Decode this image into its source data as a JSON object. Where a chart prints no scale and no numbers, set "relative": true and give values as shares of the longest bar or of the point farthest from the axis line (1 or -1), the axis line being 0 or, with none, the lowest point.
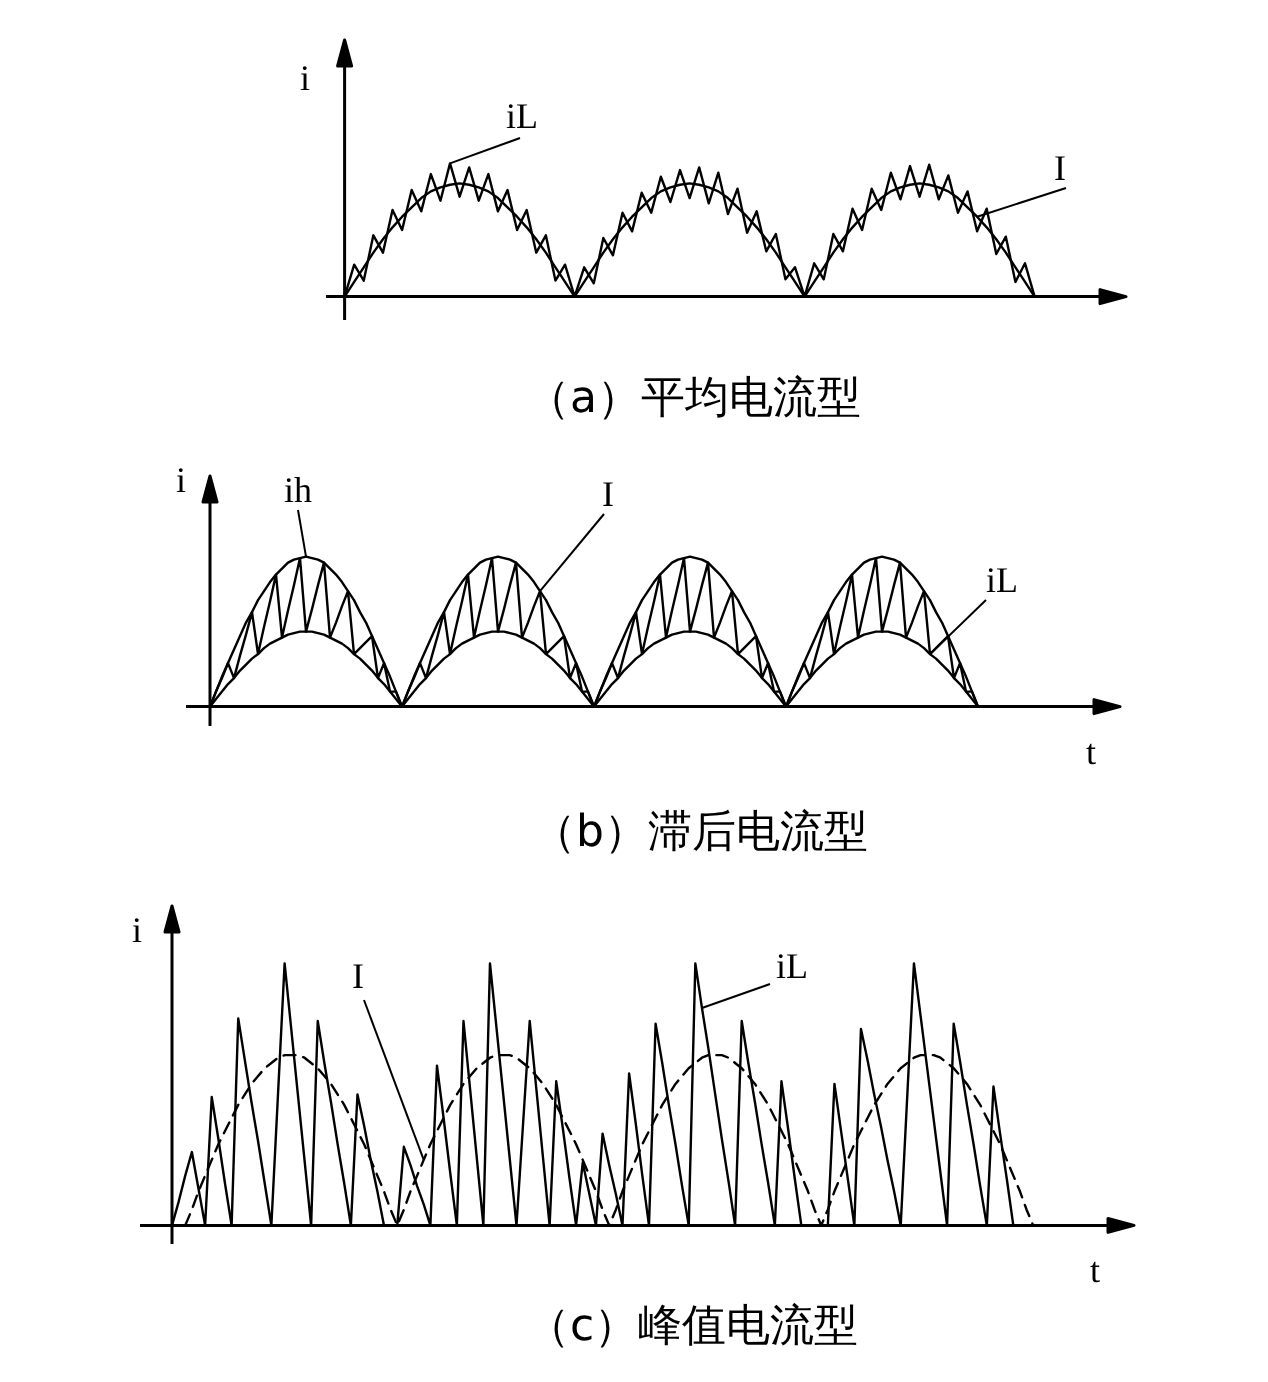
{
  "chart_data": [
    {
      "type": "line",
      "title": "（a）平均电流型",
      "ylabel": "i",
      "relative": true,
      "categories": [
        null,
        null,
        null,
        null,
        null,
        null,
        null,
        null,
        null,
        null,
        null,
        null,
        null,
        null,
        null,
        null,
        null,
        null,
        null,
        null,
        null,
        null,
        null,
        null,
        null,
        null,
        null,
        null,
        null,
        null,
        null,
        null,
        null,
        null,
        null,
        null,
        null,
        null,
        null,
        null,
        null,
        null,
        null,
        null,
        null,
        null,
        null,
        null,
        null,
        null,
        null,
        null,
        null,
        null,
        null,
        null,
        null,
        null,
        null,
        null,
        null,
        null,
        null,
        null,
        null,
        null,
        null,
        null,
        null,
        null,
        null,
        null,
        null
      ],
      "series": [
        {
          "name": "iL",
          "color": "#000000",
          "values": [
            0,
            0.24,
            0.12,
            0.46,
            0.33,
            0.65,
            0.5,
            0.8,
            0.64,
            0.92,
            0.72,
            1,
            0.75,
            0.97,
            0.72,
            0.92,
            0.64,
            0.8,
            0.5,
            0.65,
            0.33,
            0.46,
            0.12,
            0.24,
            0,
            0.22,
            0.1,
            0.44,
            0.31,
            0.63,
            0.49,
            0.78,
            0.63,
            0.9,
            0.71,
            0.95,
            0.74,
            0.97,
            0.7,
            0.93,
            0.62,
            0.81,
            0.48,
            0.64,
            0.34,
            0.47,
            0.13,
            0.22,
            0,
            0.25,
            0.13,
            0.47,
            0.34,
            0.66,
            0.5,
            0.81,
            0.65,
            0.93,
            0.73,
            0.98,
            0.75,
            0.99,
            0.73,
            0.91,
            0.63,
            0.79,
            0.49,
            0.66,
            0.32,
            0.45,
            0.11,
            0.25,
            0
          ]
        },
        {
          "name": "I",
          "color": "#000000",
          "values": [
            0,
            0.11,
            0.22,
            0.33,
            0.43,
            0.52,
            0.6,
            0.67,
            0.74,
            0.79,
            0.82,
            0.84,
            0.85,
            0.84,
            0.82,
            0.79,
            0.74,
            0.67,
            0.6,
            0.52,
            0.43,
            0.33,
            0.22,
            0.11,
            0,
            0.11,
            0.22,
            0.33,
            0.43,
            0.52,
            0.6,
            0.67,
            0.74,
            0.79,
            0.82,
            0.84,
            0.85,
            0.84,
            0.82,
            0.79,
            0.74,
            0.67,
            0.6,
            0.52,
            0.43,
            0.33,
            0.22,
            0.11,
            0,
            0.11,
            0.22,
            0.33,
            0.43,
            0.52,
            0.6,
            0.67,
            0.74,
            0.79,
            0.82,
            0.84,
            0.85,
            0.84,
            0.82,
            0.79,
            0.74,
            0.67,
            0.6,
            0.52,
            0.43,
            0.33,
            0.22,
            0.11,
            0
          ]
        }
      ]
    },
    {
      "type": "line",
      "title": "（b）滞后电流型",
      "xlabel": "t",
      "ylabel": "i",
      "relative": true,
      "categories": [
        null,
        null,
        null,
        null,
        null,
        null,
        null,
        null,
        null,
        null,
        null,
        null,
        null,
        null,
        null,
        null,
        null,
        null,
        null,
        null,
        null,
        null,
        null,
        null,
        null,
        null,
        null,
        null,
        null,
        null,
        null,
        null,
        null,
        null,
        null,
        null,
        null,
        null,
        null,
        null,
        null,
        null,
        null,
        null,
        null,
        null,
        null,
        null,
        null,
        null,
        null,
        null,
        null,
        null,
        null,
        null,
        null,
        null,
        null,
        null,
        null,
        null,
        null,
        null,
        null,
        null,
        null,
        null,
        null,
        null,
        null,
        null,
        null,
        null,
        null,
        null,
        null,
        null,
        null,
        null,
        null,
        null,
        null,
        null,
        null,
        null,
        null,
        null,
        null,
        null,
        null,
        null,
        null,
        null,
        null,
        null,
        null,
        null,
        null,
        null,
        null,
        null,
        null,
        null,
        null,
        null,
        null,
        null,
        null,
        null,
        null,
        null,
        null,
        null,
        null,
        null,
        null,
        null,
        null,
        null,
        null,
        null,
        null,
        null,
        null,
        null,
        null,
        null,
        null
      ],
      "series": [
        {
          "name": "ih",
          "color": "#000000",
          "values": [
            0,
            0.1,
            0.2,
            0.29,
            0.38,
            0.47,
            0.56,
            0.63,
            0.71,
            0.77,
            0.83,
            0.88,
            0.92,
            0.96,
            0.98,
            0.99,
            1,
            0.99,
            0.98,
            0.96,
            0.92,
            0.88,
            0.83,
            0.77,
            0.71,
            0.63,
            0.56,
            0.47,
            0.38,
            0.29,
            0.2,
            0.1,
            0,
            0.1,
            0.2,
            0.29,
            0.38,
            0.47,
            0.56,
            0.63,
            0.71,
            0.77,
            0.83,
            0.88,
            0.92,
            0.96,
            0.98,
            0.99,
            1,
            0.99,
            0.98,
            0.96,
            0.92,
            0.88,
            0.83,
            0.77,
            0.71,
            0.63,
            0.56,
            0.47,
            0.38,
            0.29,
            0.2,
            0.1,
            0,
            0.1,
            0.2,
            0.29,
            0.38,
            0.47,
            0.56,
            0.63,
            0.71,
            0.77,
            0.83,
            0.88,
            0.92,
            0.96,
            0.98,
            0.99,
            1,
            0.99,
            0.98,
            0.96,
            0.92,
            0.88,
            0.83,
            0.77,
            0.71,
            0.63,
            0.56,
            0.47,
            0.38,
            0.29,
            0.2,
            0.1,
            0,
            0.1,
            0.2,
            0.29,
            0.38,
            0.47,
            0.56,
            0.63,
            0.71,
            0.77,
            0.83,
            0.88,
            0.92,
            0.96,
            0.98,
            0.99,
            1,
            0.99,
            0.98,
            0.96,
            0.92,
            0.88,
            0.83,
            0.77,
            0.71,
            0.63,
            0.56,
            0.47,
            0.38,
            0.29,
            0.2,
            0.1,
            0
          ]
        },
        {
          "name": "I",
          "color": "#000000",
          "values": [
            0,
            0.1,
            0.19,
            0.29,
            0.19,
            0.34,
            0.48,
            0.63,
            0.35,
            0.53,
            0.7,
            0.88,
            0.46,
            0.64,
            0.81,
            0.99,
            0.5,
            0.65,
            0.81,
            0.96,
            0.46,
            0.56,
            0.67,
            0.77,
            0.35,
            0.39,
            0.43,
            0.47,
            0.19,
            0.29,
            0.1,
            0.1,
            0,
            0.1,
            0.19,
            0.29,
            0.19,
            0.34,
            0.48,
            0.63,
            0.35,
            0.53,
            0.7,
            0.88,
            0.46,
            0.64,
            0.81,
            0.99,
            0.5,
            0.65,
            0.81,
            0.96,
            0.46,
            0.56,
            0.67,
            0.77,
            0.35,
            0.39,
            0.43,
            0.47,
            0.19,
            0.29,
            0.1,
            0.1,
            0,
            0.1,
            0.19,
            0.29,
            0.19,
            0.34,
            0.48,
            0.63,
            0.35,
            0.53,
            0.7,
            0.88,
            0.46,
            0.64,
            0.81,
            0.99,
            0.5,
            0.65,
            0.81,
            0.96,
            0.46,
            0.56,
            0.67,
            0.77,
            0.35,
            0.39,
            0.43,
            0.47,
            0.19,
            0.29,
            0.1,
            0.1,
            0,
            0.1,
            0.19,
            0.29,
            0.19,
            0.34,
            0.48,
            0.63,
            0.35,
            0.53,
            0.7,
            0.88,
            0.46,
            0.64,
            0.81,
            0.99,
            0.5,
            0.65,
            0.81,
            0.96,
            0.46,
            0.56,
            0.67,
            0.77,
            0.35,
            0.39,
            0.43,
            0.47,
            0.19,
            0.29,
            0.1,
            0.1,
            0
          ]
        },
        {
          "name": "iL",
          "color": "#000000",
          "values": [
            0,
            0.05,
            0.1,
            0.15,
            0.19,
            0.24,
            0.28,
            0.32,
            0.35,
            0.39,
            0.42,
            0.44,
            0.46,
            0.48,
            0.49,
            0.5,
            0.5,
            0.5,
            0.49,
            0.48,
            0.46,
            0.44,
            0.42,
            0.39,
            0.35,
            0.32,
            0.28,
            0.24,
            0.19,
            0.15,
            0.1,
            0.05,
            0,
            0.05,
            0.1,
            0.15,
            0.19,
            0.24,
            0.28,
            0.32,
            0.35,
            0.39,
            0.42,
            0.44,
            0.46,
            0.48,
            0.49,
            0.5,
            0.5,
            0.5,
            0.49,
            0.48,
            0.46,
            0.44,
            0.42,
            0.39,
            0.35,
            0.32,
            0.28,
            0.24,
            0.19,
            0.15,
            0.1,
            0.05,
            0,
            0.05,
            0.1,
            0.15,
            0.19,
            0.24,
            0.28,
            0.32,
            0.35,
            0.39,
            0.42,
            0.44,
            0.46,
            0.48,
            0.49,
            0.5,
            0.5,
            0.5,
            0.49,
            0.48,
            0.46,
            0.44,
            0.42,
            0.39,
            0.35,
            0.32,
            0.28,
            0.24,
            0.19,
            0.15,
            0.1,
            0.05,
            0,
            0.05,
            0.1,
            0.15,
            0.19,
            0.24,
            0.28,
            0.32,
            0.35,
            0.39,
            0.42,
            0.44,
            0.46,
            0.48,
            0.49,
            0.5,
            0.5,
            0.5,
            0.49,
            0.48,
            0.46,
            0.44,
            0.42,
            0.39,
            0.35,
            0.32,
            0.28,
            0.24,
            0.19,
            0.15,
            0.1,
            0.05,
            0
          ]
        }
      ]
    },
    {
      "type": "line",
      "title": "（c）峰值电流型",
      "xlabel": "t",
      "ylabel": "i",
      "relative": true,
      "categories": [
        null,
        null,
        null,
        null,
        null,
        null,
        null,
        null,
        null,
        null,
        null,
        null,
        null,
        null,
        null,
        null,
        null,
        null,
        null,
        null,
        null,
        null,
        null,
        null,
        null,
        null,
        null,
        null,
        null,
        null,
        null,
        null,
        null,
        null,
        null,
        null,
        null,
        null,
        null,
        null,
        null,
        null,
        null,
        null,
        null,
        null,
        null,
        null,
        null,
        null,
        null,
        null,
        null,
        null,
        null,
        null,
        null,
        null,
        null,
        null,
        null,
        null,
        null,
        null,
        null,
        null,
        null,
        null,
        null,
        null,
        null,
        null,
        null,
        null,
        null,
        null,
        null,
        null,
        null,
        null,
        null,
        null,
        null,
        null,
        null,
        null,
        null,
        null,
        null,
        null,
        null,
        null,
        null,
        null,
        null,
        null,
        null,
        null,
        null,
        null,
        null,
        null,
        null,
        null,
        null,
        null,
        null,
        null,
        null,
        null,
        null,
        null,
        null,
        null,
        null,
        null,
        null,
        null,
        null,
        null,
        null,
        null,
        null,
        null,
        null,
        null,
        null,
        null,
        null,
        null,
        null
      ],
      "series": [
        {
          "name": "I",
          "color": "#000000",
          "line_style": "dashed",
          "values": [
            null,
            null,
            0,
            0.06,
            0.13,
            0.19,
            0.25,
            0.31,
            0.36,
            0.41,
            0.46,
            0.5,
            0.54,
            0.57,
            0.6,
            0.62,
            0.64,
            0.65,
            0.65,
            0.65,
            0.64,
            0.62,
            0.6,
            0.57,
            0.54,
            0.5,
            0.46,
            0.41,
            0.36,
            0.31,
            0.25,
            0.19,
            0.13,
            0.06,
            0,
            0.06,
            0.13,
            0.19,
            0.25,
            0.31,
            0.36,
            0.41,
            0.46,
            0.5,
            0.54,
            0.57,
            0.6,
            0.62,
            0.64,
            0.65,
            0.65,
            0.65,
            0.64,
            0.62,
            0.6,
            0.57,
            0.54,
            0.5,
            0.46,
            0.41,
            0.36,
            0.31,
            0.25,
            0.19,
            0.13,
            0.06,
            0,
            0.06,
            0.13,
            0.19,
            0.25,
            0.31,
            0.36,
            0.41,
            0.46,
            0.5,
            0.54,
            0.57,
            0.6,
            0.62,
            0.64,
            0.65,
            0.65,
            0.65,
            0.64,
            0.62,
            0.6,
            0.57,
            0.54,
            0.5,
            0.46,
            0.41,
            0.36,
            0.31,
            0.25,
            0.19,
            0.13,
            0.06,
            0,
            0.06,
            0.13,
            0.19,
            0.25,
            0.31,
            0.36,
            0.41,
            0.46,
            0.5,
            0.54,
            0.57,
            0.6,
            0.62,
            0.64,
            0.65,
            0.65,
            0.65,
            0.64,
            0.62,
            0.6,
            0.57,
            0.54,
            0.5,
            0.46,
            0.41,
            0.36,
            0.31,
            0.25,
            0.19,
            0.13,
            0.06,
            0
          ]
        },
        {
          "name": "iL",
          "color": "#000000",
          "values": [
            0,
            0.09,
            0.19,
            0.28,
            0.14,
            0,
            0.49,
            0.33,
            0.16,
            0,
            0.79,
            0.63,
            0.47,
            0.32,
            0.16,
            0,
            0.5,
            1,
            0.75,
            0.5,
            0.25,
            0,
            0.78,
            0.62,
            0.47,
            0.31,
            0.16,
            0,
            0.5,
            0.38,
            0.25,
            0.13,
            0,
            0,
            0,
            0.3,
            0.23,
            0.15,
            0.08,
            0,
            0.61,
            0.41,
            0.2,
            0,
            0.78,
            0.52,
            0.26,
            0,
            1,
            0.75,
            0.5,
            0.25,
            0,
            0.39,
            0.78,
            0.52,
            0.26,
            0,
            0.55,
            0.37,
            0.18,
            0,
            0.24,
            0.12,
            0,
            0.35,
            0.23,
            0.12,
            0,
            0.58,
            0.39,
            0.19,
            0,
            0.77,
            0.62,
            0.46,
            0.31,
            0.15,
            0,
            1,
            0.83,
            0.67,
            0.5,
            0.33,
            0.17,
            0,
            0.78,
            0.62,
            0.47,
            0.31,
            0.16,
            0,
            0.55,
            0.37,
            0.18,
            0,
            0,
            0,
            0,
            0,
            0.54,
            0.36,
            0.18,
            0,
            0.75,
            0.63,
            0.5,
            0.38,
            0.25,
            0.13,
            0,
            0.5,
            1,
            0.8,
            0.6,
            0.4,
            0.2,
            0,
            0.77,
            0.62,
            0.46,
            0.31,
            0.15,
            0,
            0.53,
            0.35,
            0.18,
            0,
            null,
            null,
            null
          ]
        }
      ]
    }
  ]
}
